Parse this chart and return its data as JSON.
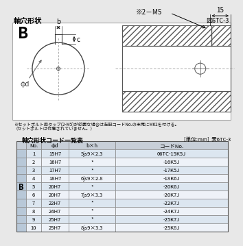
{
  "title_left": "軸穴形状",
  "title_right": "図6TC-3",
  "bg_color": "#e8e8e8",
  "diagram_bg": "#ffffff",
  "table_title": "軸穴形状コード一覧表",
  "table_unit": "[単位:mm]  表6TC-3",
  "table_headers": [
    "No.",
    "φd",
    "b×h",
    "コードNo."
  ],
  "table_b_label": "B",
  "table_rows": [
    [
      "1",
      "15H7",
      "5js9×2.3",
      "06TC-15K5J"
    ],
    [
      "2",
      "16H7",
      "*",
      "-16K5J"
    ],
    [
      "3",
      "17H7",
      "*",
      "-17K5J"
    ],
    [
      "4",
      "18H7",
      "6js9×2.8",
      "-18K6J"
    ],
    [
      "5",
      "20H7",
      "*",
      "-20K6J"
    ],
    [
      "6",
      "20H7",
      "7js9×3.3",
      "-20K7J"
    ],
    [
      "7",
      "22H7",
      "*",
      "-22K7J"
    ],
    [
      "8",
      "24H7",
      "*",
      "-24K7J"
    ],
    [
      "9",
      "25H7",
      "*",
      "-25K7J"
    ],
    [
      "10",
      "25H7",
      "8js9×3.3",
      "-25K8J"
    ]
  ],
  "note_line1": "※セットボルト用タップ(2-M5)が必要な場合は左記コードNo.の末尾にM62を付ける。",
  "note_line2": "（セットボルトは付属されていません。）",
  "diagram_label_b": "b",
  "diagram_label_c": "c",
  "diagram_label_phi": "φd",
  "diagram_annotation": "※2－M5",
  "diagram_dim": "15",
  "header_color": "#c8cfd8",
  "row_color1": "#dce6f0",
  "row_color2": "#eef2f8",
  "b_col_color": "#b8c8d8",
  "border_color": "#888888"
}
